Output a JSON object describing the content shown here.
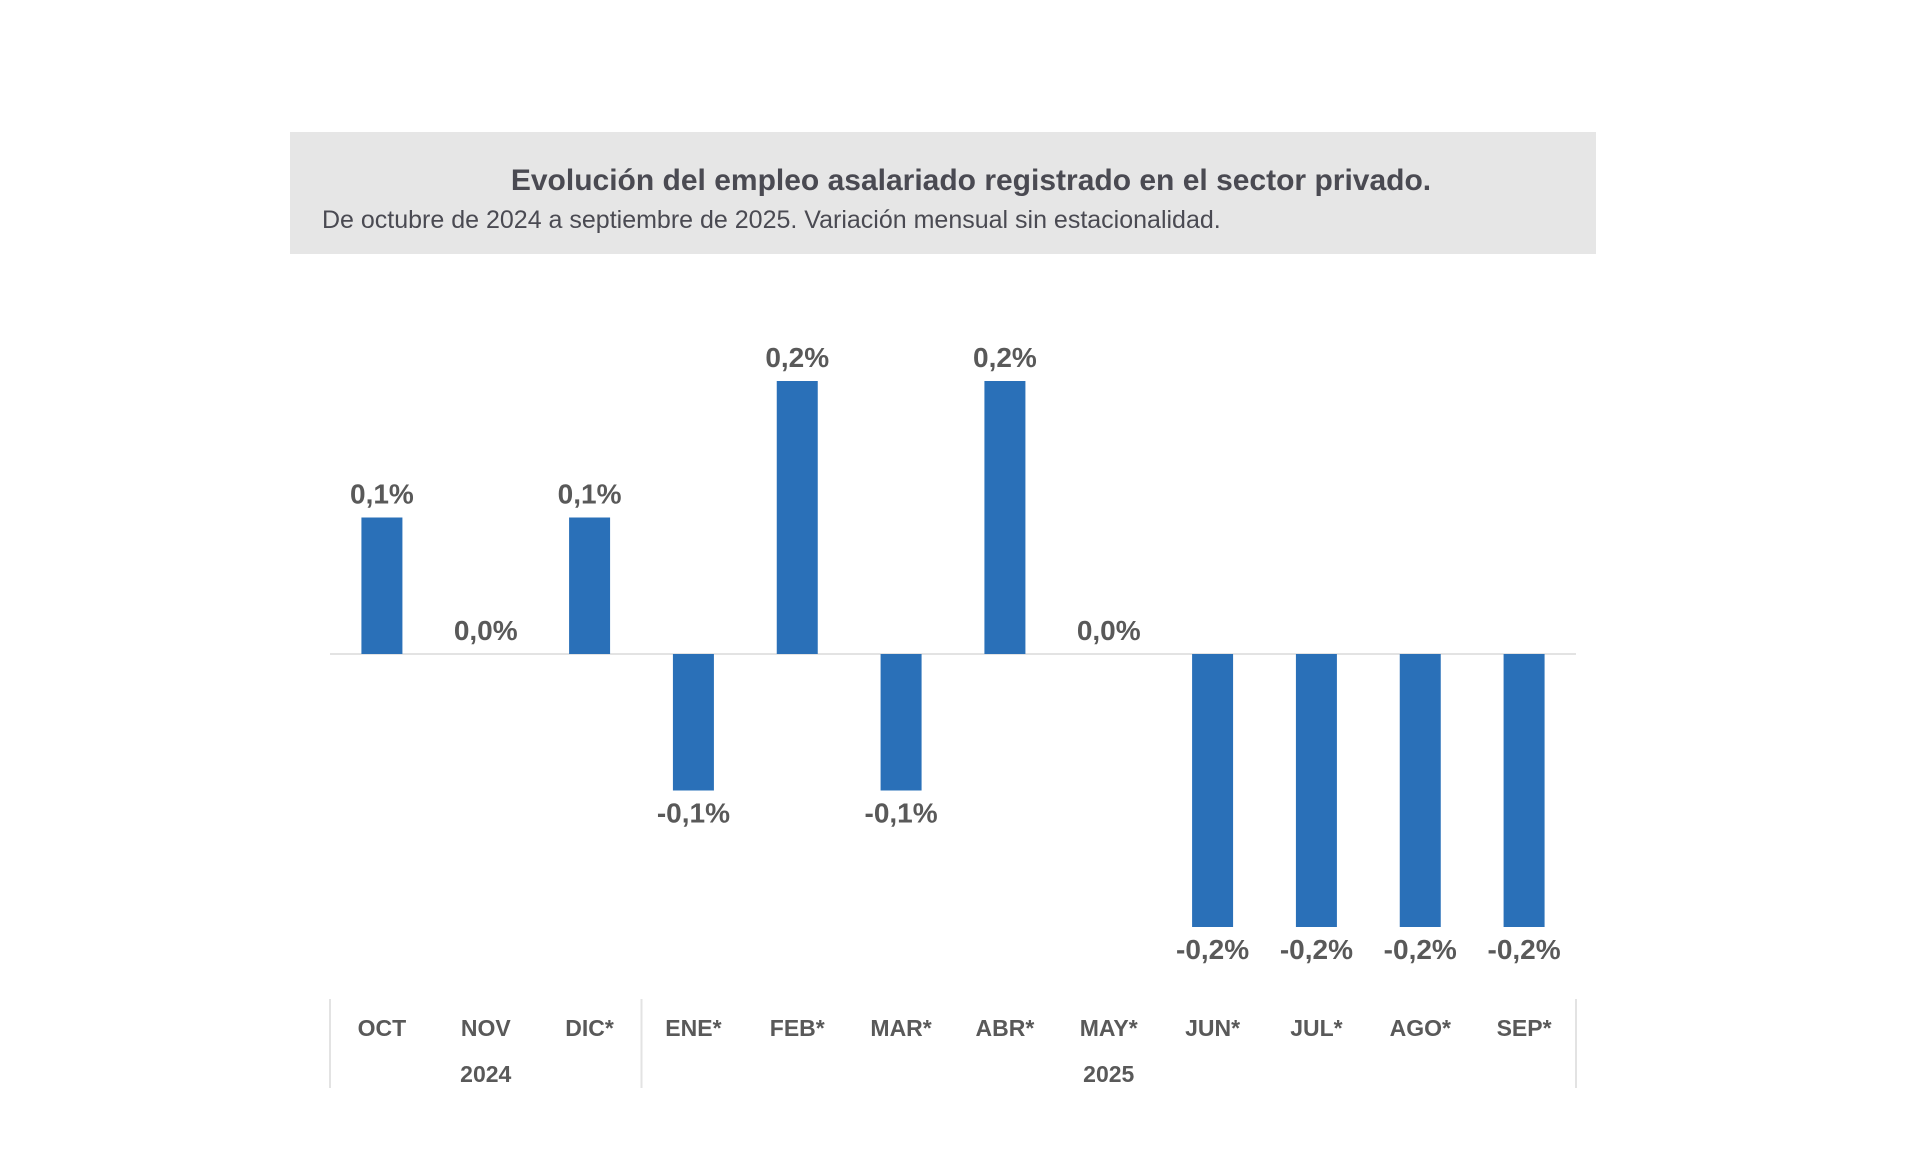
{
  "chart_data": {
    "type": "bar",
    "title": "Evolución del empleo asalariado registrado en el sector privado.",
    "subtitle": "De octubre de 2024 a septiembre de 2025. Variación mensual sin estacionalidad.",
    "categories": [
      "OCT",
      "NOV",
      "DIC*",
      "ENE*",
      "FEB*",
      "MAR*",
      "ABR*",
      "MAY*",
      "JUN*",
      "JUL*",
      "AGO*",
      "SEP*"
    ],
    "values": [
      0.1,
      0.0,
      0.1,
      -0.1,
      0.2,
      -0.1,
      0.2,
      0.0,
      -0.2,
      -0.2,
      -0.2,
      -0.2
    ],
    "data_labels": [
      "0,1%",
      "0,0%",
      "0,1%",
      "-0,1%",
      "0,2%",
      "-0,1%",
      "0,2%",
      "0,0%",
      "-0,2%",
      "-0,2%",
      "-0,2%",
      "-0,2%"
    ],
    "year_groups": [
      {
        "label": "2024",
        "count": 3
      },
      {
        "label": "2025",
        "count": 9
      }
    ],
    "ylim": [
      -0.2,
      0.2
    ],
    "grid": false,
    "bar_color": "#2a70b8",
    "xlabel": "",
    "ylabel": ""
  }
}
